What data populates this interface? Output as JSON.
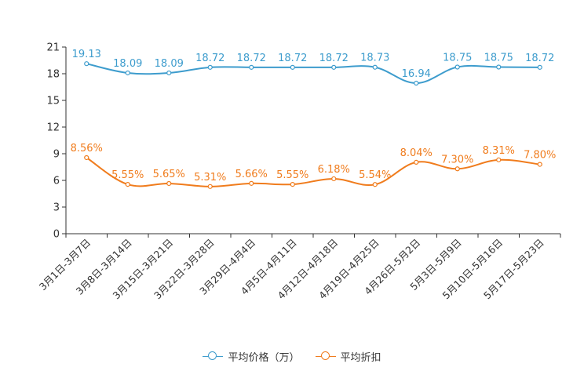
{
  "chart_data": {
    "type": "line",
    "title": "",
    "xlabel": "",
    "ylabel": "",
    "ylim": [
      0,
      21
    ],
    "yticks": [
      0,
      3,
      6,
      9,
      12,
      15,
      18,
      21
    ],
    "categories": [
      "3月1日-3月7日",
      "3月8日-3月14日",
      "3月15日-3月21日",
      "3月22日-3月28日",
      "3月29日-4月4日",
      "4月5日-4月11日",
      "4月12日-4月18日",
      "4月19日-4月25日",
      "4月26日-5月2日",
      "5月3日-5月9日",
      "5月10日-5月16日",
      "5月17日-5月23日"
    ],
    "series": [
      {
        "name": "平均价格（万）",
        "color": "#3d9ccd",
        "values": [
          19.13,
          18.09,
          18.09,
          18.72,
          18.72,
          18.72,
          18.72,
          18.73,
          16.94,
          18.75,
          18.75,
          18.72
        ],
        "labels": [
          "19.13",
          "18.09",
          "18.09",
          "18.72",
          "18.72",
          "18.72",
          "18.72",
          "18.73",
          "16.94",
          "18.75",
          "18.75",
          "18.72"
        ]
      },
      {
        "name": "平均折扣",
        "color": "#f07c1d",
        "values": [
          8.56,
          5.55,
          5.65,
          5.31,
          5.66,
          5.55,
          6.18,
          5.54,
          8.04,
          7.3,
          8.31,
          7.8
        ],
        "labels": [
          "8.56%",
          "5.55%",
          "5.65%",
          "5.31%",
          "5.66%",
          "5.55%",
          "6.18%",
          "5.54%",
          "8.04%",
          "7.30%",
          "8.31%",
          "7.80%"
        ]
      }
    ],
    "legend_position": "bottom-center"
  }
}
